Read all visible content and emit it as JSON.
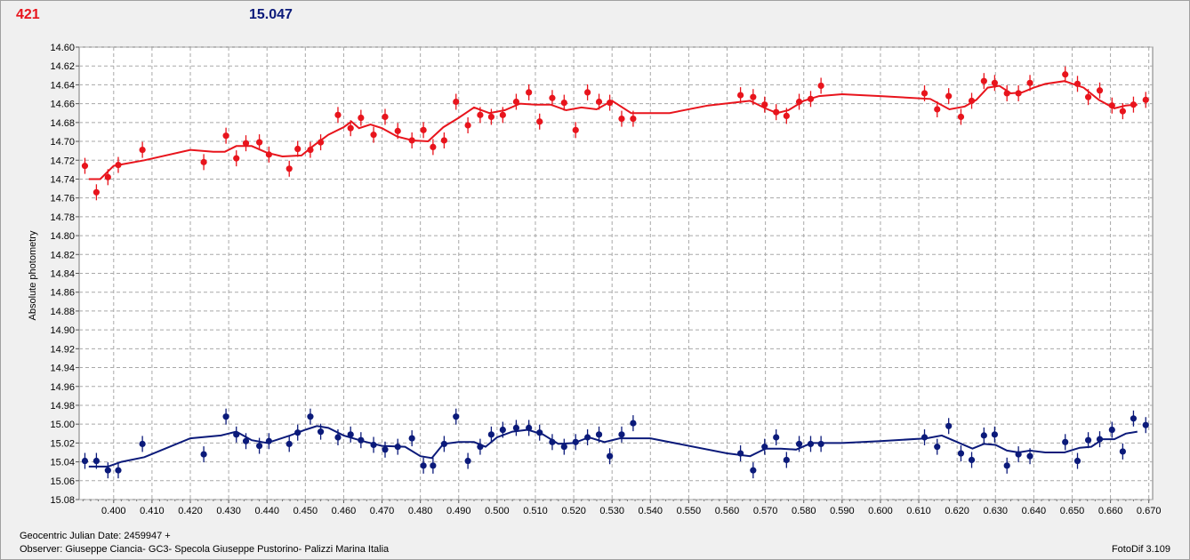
{
  "header": {
    "left_value": "421",
    "right_value": "15.047"
  },
  "footer": {
    "julian_date": "Geocentric Julian Date: 2459947 +",
    "observer": "Observer: Giuseppe Ciancia- GC3- Specola Giuseppe Pustorino- Palizzi Marina Italia",
    "software": "FotoDif 3.109"
  },
  "colors": {
    "red_series": "#e8141c",
    "blue_series": "#0b1a7a",
    "grid": "#a8a8a8"
  },
  "chart_data": {
    "type": "scatter",
    "ylabel": "Absolute photometry",
    "xlim": [
      0.391,
      0.671
    ],
    "ylim": [
      14.6,
      15.08
    ],
    "y_inverted": true,
    "grid": true,
    "x_ticks": [
      "0.400",
      "0.410",
      "0.420",
      "0.430",
      "0.440",
      "0.450",
      "0.460",
      "0.470",
      "0.480",
      "0.490",
      "0.500",
      "0.510",
      "0.520",
      "0.530",
      "0.540",
      "0.550",
      "0.560",
      "0.570",
      "0.580",
      "0.590",
      "0.600",
      "0.610",
      "0.620",
      "0.630",
      "0.640",
      "0.650",
      "0.660",
      "0.670"
    ],
    "y_ticks": [
      "14.60",
      "14.62",
      "14.64",
      "14.66",
      "14.68",
      "14.70",
      "14.72",
      "14.74",
      "14.76",
      "14.78",
      "14.80",
      "14.82",
      "14.84",
      "14.86",
      "14.88",
      "14.90",
      "14.92",
      "14.94",
      "14.96",
      "14.98",
      "15.00",
      "15.02",
      "15.04",
      "15.06",
      "15.08"
    ],
    "series": [
      {
        "color": "#e8141c",
        "x": [
          0.3925,
          0.3955,
          0.3985,
          0.4012,
          0.4075,
          0.4235,
          0.4293,
          0.432,
          0.4345,
          0.438,
          0.4405,
          0.4458,
          0.448,
          0.4513,
          0.454,
          0.4585,
          0.4618,
          0.4645,
          0.4678,
          0.4708,
          0.4741,
          0.4778,
          0.4808,
          0.4833,
          0.4862,
          0.4893,
          0.4924,
          0.4956,
          0.4985,
          0.5015,
          0.505,
          0.5083,
          0.5111,
          0.5144,
          0.5175,
          0.5205,
          0.5236,
          0.5266,
          0.5294,
          0.5325,
          0.5355,
          0.5635,
          0.5668,
          0.5698,
          0.5728,
          0.5755,
          0.5788,
          0.5818,
          0.5845,
          0.6115,
          0.6148,
          0.6178,
          0.621,
          0.6238,
          0.627,
          0.6298,
          0.633,
          0.636,
          0.639,
          0.6482,
          0.6514,
          0.6542,
          0.6572,
          0.6604,
          0.6632,
          0.666,
          0.6692
        ],
        "y": [
          14.726,
          14.754,
          14.738,
          14.725,
          14.709,
          14.722,
          14.694,
          14.718,
          14.702,
          14.701,
          14.714,
          14.729,
          14.708,
          14.709,
          14.701,
          14.672,
          14.686,
          14.675,
          14.693,
          14.674,
          14.689,
          14.699,
          14.688,
          14.706,
          14.699,
          14.658,
          14.683,
          14.672,
          14.674,
          14.672,
          14.658,
          14.648,
          14.679,
          14.654,
          14.659,
          14.688,
          14.648,
          14.658,
          14.659,
          14.676,
          14.676,
          14.651,
          14.653,
          14.661,
          14.669,
          14.673,
          14.658,
          14.655,
          14.641,
          14.649,
          14.666,
          14.652,
          14.674,
          14.657,
          14.636,
          14.638,
          14.649,
          14.649,
          14.638,
          14.629,
          14.639,
          14.653,
          14.646,
          14.662,
          14.668,
          14.661,
          14.656
        ]
      },
      {
        "color": "#0b1a7a",
        "x": [
          0.3925,
          0.3955,
          0.3985,
          0.4012,
          0.4075,
          0.4235,
          0.4293,
          0.432,
          0.4345,
          0.438,
          0.4405,
          0.4458,
          0.448,
          0.4513,
          0.454,
          0.4585,
          0.4618,
          0.4645,
          0.4678,
          0.4708,
          0.4741,
          0.4778,
          0.4808,
          0.4833,
          0.4862,
          0.4893,
          0.4924,
          0.4956,
          0.4985,
          0.5015,
          0.505,
          0.5083,
          0.5111,
          0.5144,
          0.5175,
          0.5205,
          0.5236,
          0.5266,
          0.5294,
          0.5325,
          0.5355,
          0.5635,
          0.5668,
          0.5698,
          0.5728,
          0.5755,
          0.5788,
          0.5818,
          0.5845,
          0.6115,
          0.6148,
          0.6178,
          0.621,
          0.6238,
          0.627,
          0.6298,
          0.633,
          0.636,
          0.639,
          0.6482,
          0.6514,
          0.6542,
          0.6572,
          0.6604,
          0.6632,
          0.666,
          0.6692
        ],
        "y": [
          15.039,
          15.039,
          15.049,
          15.049,
          15.021,
          15.032,
          14.992,
          15.011,
          15.018,
          15.023,
          15.018,
          15.021,
          15.009,
          14.992,
          15.008,
          15.014,
          15.011,
          15.017,
          15.022,
          15.027,
          15.024,
          15.015,
          15.044,
          15.044,
          15.021,
          14.992,
          15.039,
          15.024,
          15.011,
          15.006,
          15.004,
          15.004,
          15.009,
          15.019,
          15.024,
          15.019,
          15.014,
          15.011,
          15.034,
          15.011,
          14.999,
          15.031,
          15.049,
          15.024,
          15.014,
          15.038,
          15.021,
          15.021,
          15.021,
          15.014,
          15.024,
          15.002,
          15.031,
          15.038,
          15.012,
          15.011,
          15.044,
          15.032,
          15.034,
          15.019,
          15.039,
          15.017,
          15.016,
          15.006,
          15.029,
          14.994,
          15.001
        ]
      }
    ],
    "trend_lines": [
      {
        "color": "#e8141c",
        "x": [
          0.3935,
          0.3965,
          0.4,
          0.408,
          0.42,
          0.426,
          0.429,
          0.432,
          0.436,
          0.44,
          0.444,
          0.449,
          0.452,
          0.456,
          0.46,
          0.462,
          0.464,
          0.467,
          0.47,
          0.474,
          0.478,
          0.482,
          0.486,
          0.49,
          0.494,
          0.498,
          0.502,
          0.506,
          0.51,
          0.514,
          0.518,
          0.522,
          0.526,
          0.53,
          0.535,
          0.545,
          0.555,
          0.566,
          0.57,
          0.573,
          0.576,
          0.58,
          0.584,
          0.59,
          0.6,
          0.613,
          0.618,
          0.622,
          0.625,
          0.628,
          0.631,
          0.634,
          0.637,
          0.64,
          0.643,
          0.648,
          0.653,
          0.657,
          0.661,
          0.664,
          0.667
        ],
        "y": [
          14.74,
          14.74,
          14.726,
          14.72,
          14.709,
          14.711,
          14.711,
          14.705,
          14.705,
          14.712,
          14.716,
          14.715,
          14.705,
          14.693,
          14.685,
          14.679,
          14.686,
          14.682,
          14.686,
          14.695,
          14.699,
          14.7,
          14.685,
          14.675,
          14.664,
          14.67,
          14.667,
          14.66,
          14.661,
          14.661,
          14.667,
          14.664,
          14.666,
          14.657,
          14.67,
          14.67,
          14.662,
          14.657,
          14.665,
          14.67,
          14.667,
          14.657,
          14.652,
          14.65,
          14.652,
          14.655,
          14.666,
          14.663,
          14.656,
          14.643,
          14.641,
          14.649,
          14.648,
          14.643,
          14.639,
          14.636,
          14.643,
          14.656,
          14.665,
          14.662,
          14.661
        ]
      },
      {
        "color": "#0b1a7a",
        "x": [
          0.3935,
          0.3965,
          0.3985,
          0.402,
          0.408,
          0.42,
          0.428,
          0.432,
          0.436,
          0.44,
          0.446,
          0.45,
          0.453,
          0.456,
          0.46,
          0.465,
          0.47,
          0.476,
          0.48,
          0.483,
          0.486,
          0.49,
          0.494,
          0.497,
          0.5,
          0.504,
          0.508,
          0.512,
          0.516,
          0.52,
          0.524,
          0.528,
          0.532,
          0.54,
          0.56,
          0.566,
          0.57,
          0.574,
          0.578,
          0.582,
          0.59,
          0.6,
          0.612,
          0.616,
          0.62,
          0.624,
          0.627,
          0.63,
          0.633,
          0.636,
          0.639,
          0.643,
          0.648,
          0.652,
          0.655,
          0.658,
          0.661,
          0.664,
          0.667
        ],
        "y": [
          15.045,
          15.045,
          15.045,
          15.04,
          15.035,
          15.015,
          15.012,
          15.008,
          15.017,
          15.02,
          15.012,
          15.006,
          15.002,
          15.004,
          15.012,
          15.018,
          15.023,
          15.024,
          15.034,
          15.036,
          15.021,
          15.019,
          15.019,
          15.024,
          15.014,
          15.008,
          15.006,
          15.011,
          15.021,
          15.02,
          15.014,
          15.019,
          15.015,
          15.015,
          15.031,
          15.034,
          15.026,
          15.026,
          15.027,
          15.02,
          15.02,
          15.018,
          15.015,
          15.012,
          15.019,
          15.026,
          15.021,
          15.022,
          15.028,
          15.03,
          15.028,
          15.03,
          15.03,
          15.025,
          15.024,
          15.016,
          15.016,
          15.01,
          15.008
        ]
      }
    ]
  }
}
